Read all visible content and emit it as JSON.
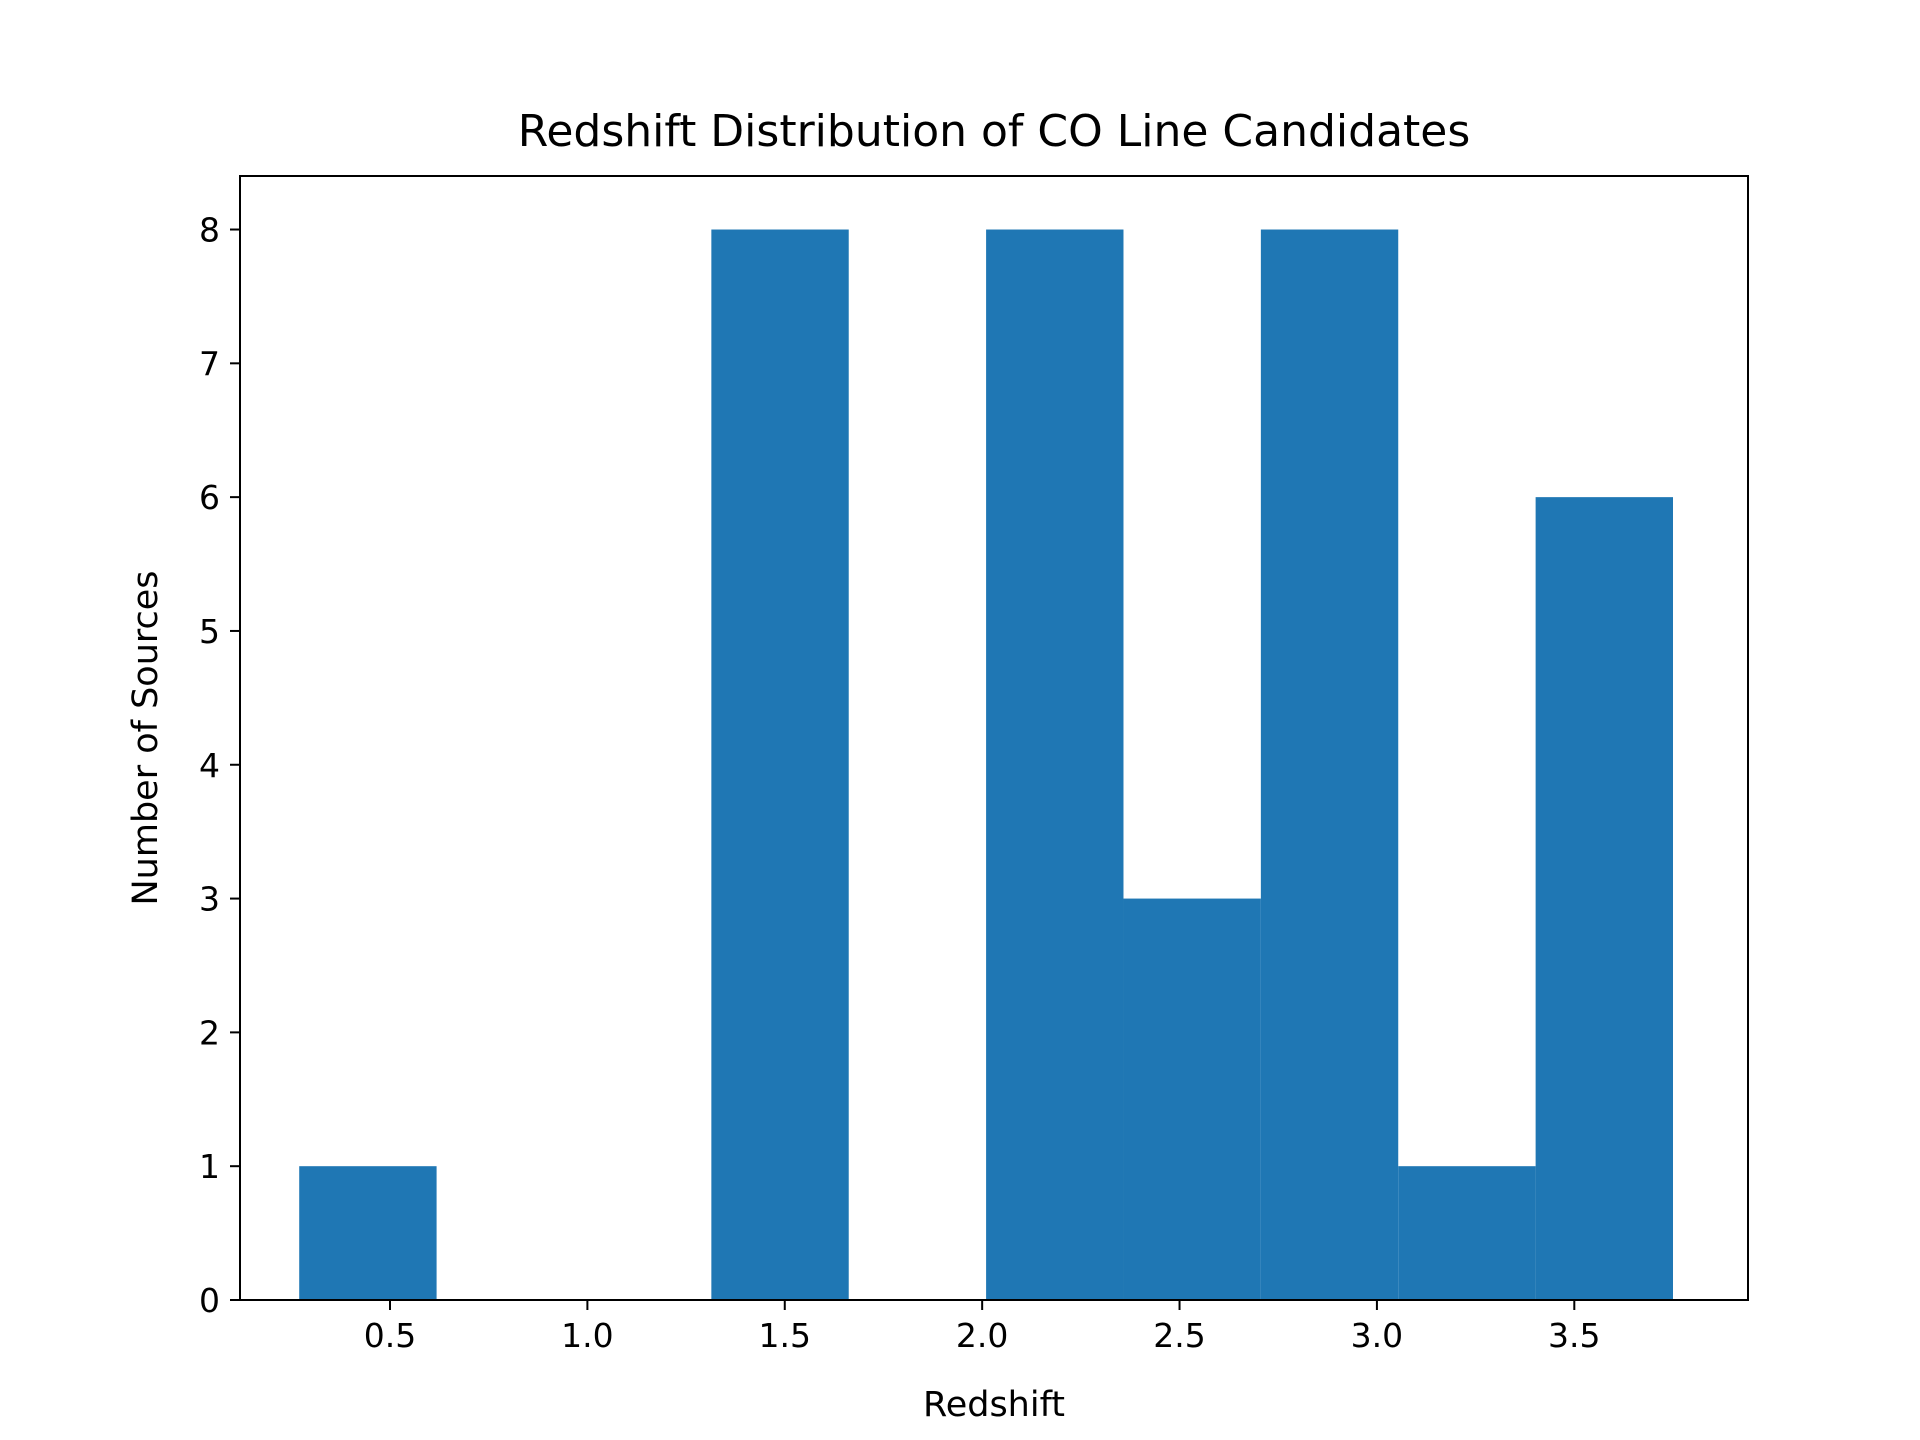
{
  "chart_data": {
    "type": "bar",
    "title": "Redshift Distribution of CO Line Candidates",
    "xlabel": "Redshift",
    "ylabel": "Number of Sources",
    "xlim": [
      0.12,
      3.94
    ],
    "ylim": [
      0,
      8.4
    ],
    "xticks": [
      0.5,
      1.0,
      1.5,
      2.0,
      2.5,
      3.0,
      3.5
    ],
    "xtick_labels": [
      "0.5",
      "1.0",
      "1.5",
      "2.0",
      "2.5",
      "3.0",
      "3.5"
    ],
    "yticks": [
      0,
      1,
      2,
      3,
      4,
      5,
      6,
      7,
      8
    ],
    "ytick_labels": [
      "0",
      "1",
      "2",
      "3",
      "4",
      "5",
      "6",
      "7",
      "8"
    ],
    "bin_edges": [
      0.27,
      0.618,
      0.966,
      1.314,
      1.662,
      2.01,
      2.358,
      2.706,
      3.054,
      3.402,
      3.75
    ],
    "values": [
      1,
      0,
      0,
      8,
      0,
      8,
      3,
      8,
      1,
      6
    ],
    "bar_color": "#1f77b4",
    "grid": false,
    "legend": "none"
  }
}
